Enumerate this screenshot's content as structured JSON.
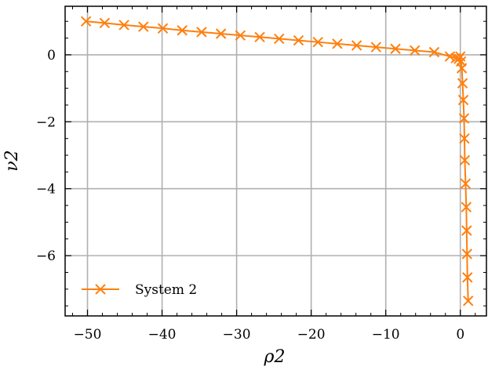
{
  "chart_data": {
    "type": "line",
    "xlabel": "ρ2",
    "ylabel": "ν2",
    "xlim": [
      -53,
      3.5
    ],
    "ylim": [
      -7.8,
      1.45
    ],
    "x_ticks": [
      -50,
      -40,
      -30,
      -20,
      -10,
      0
    ],
    "y_ticks": [
      0,
      -2,
      -4,
      -6
    ],
    "x_tick_labels": [
      "−50",
      "−40",
      "−30",
      "−20",
      "−10",
      "0"
    ],
    "y_tick_labels": [
      "0",
      "−2",
      "−4",
      "−6"
    ],
    "grid": true,
    "legend_position": "lower-left",
    "series": [
      {
        "name": "System 2",
        "color": "#ff7f0e",
        "marker": "x",
        "points": [
          [
            -50.2,
            1.0
          ],
          [
            -47.7,
            0.95
          ],
          [
            -45.1,
            0.89
          ],
          [
            -42.5,
            0.84
          ],
          [
            -39.9,
            0.79
          ],
          [
            -37.3,
            0.73
          ],
          [
            -34.7,
            0.68
          ],
          [
            -32.1,
            0.63
          ],
          [
            -29.5,
            0.58
          ],
          [
            -26.9,
            0.53
          ],
          [
            -24.3,
            0.48
          ],
          [
            -21.7,
            0.43
          ],
          [
            -19.1,
            0.38
          ],
          [
            -16.5,
            0.33
          ],
          [
            -13.9,
            0.28
          ],
          [
            -11.3,
            0.23
          ],
          [
            -8.7,
            0.18
          ],
          [
            -6.1,
            0.13
          ],
          [
            -3.5,
            0.08
          ],
          [
            -1.4,
            -0.05
          ],
          [
            -0.6,
            -0.1
          ],
          [
            -0.2,
            -0.12
          ],
          [
            0.0,
            -0.05
          ],
          [
            0.1,
            -0.2
          ],
          [
            0.2,
            -0.4
          ],
          [
            0.3,
            -0.85
          ],
          [
            0.4,
            -1.35
          ],
          [
            0.5,
            -1.9
          ],
          [
            0.55,
            -2.5
          ],
          [
            0.6,
            -3.15
          ],
          [
            0.7,
            -3.85
          ],
          [
            0.8,
            -4.55
          ],
          [
            0.85,
            -5.25
          ],
          [
            0.9,
            -5.95
          ],
          [
            0.95,
            -6.65
          ],
          [
            1.05,
            -7.35
          ]
        ]
      }
    ]
  }
}
